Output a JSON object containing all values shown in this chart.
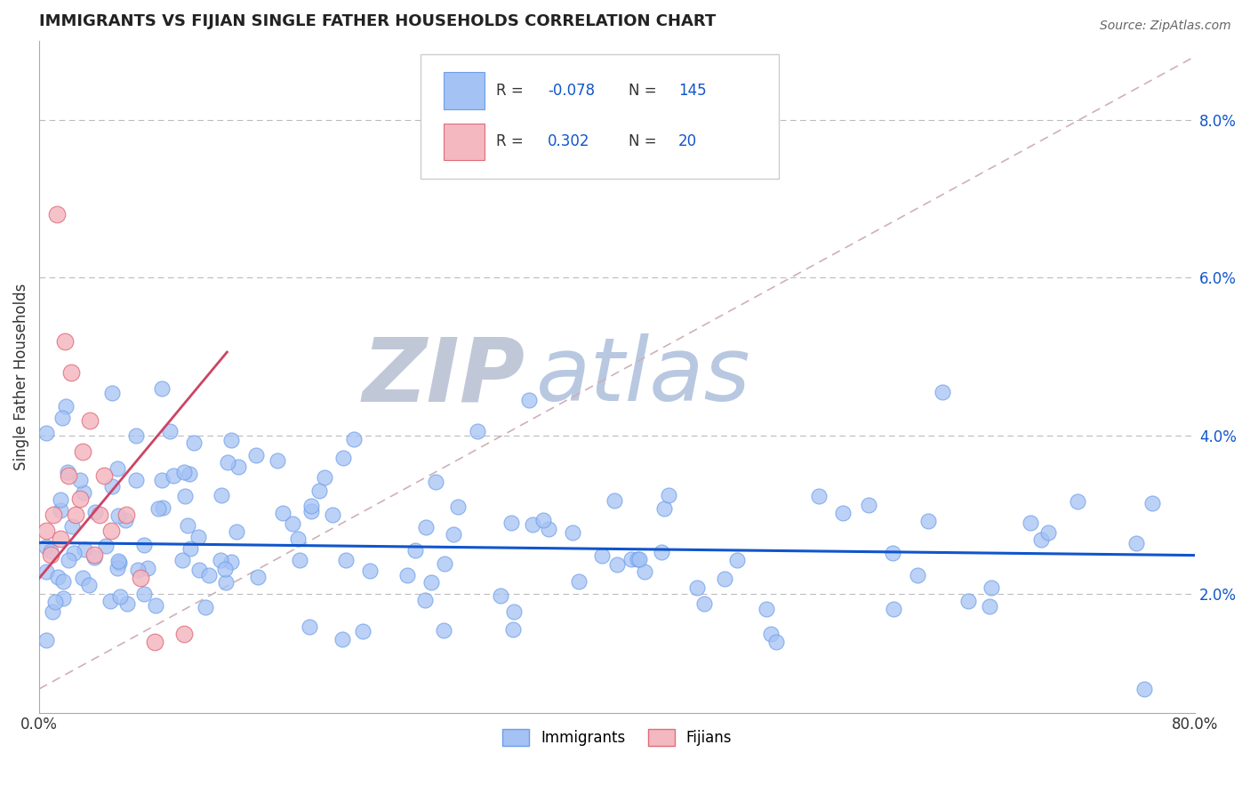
{
  "title": "IMMIGRANTS VS FIJIAN SINGLE FATHER HOUSEHOLDS CORRELATION CHART",
  "source": "Source: ZipAtlas.com",
  "ylabel": "Single Father Households",
  "xlim": [
    0.0,
    0.8
  ],
  "ylim": [
    0.005,
    0.09
  ],
  "blue_color": "#a4c2f4",
  "blue_edge_color": "#6d9eeb",
  "pink_color": "#f4b8c1",
  "pink_edge_color": "#e06c7a",
  "blue_line_color": "#1155cc",
  "pink_line_color": "#cc4466",
  "diag_color": "#e8b4b8",
  "grid_color": "#bbbbbb",
  "legend_text_color": "#1155cc",
  "legend_r_color": "#333333",
  "background_color": "#ffffff",
  "watermark_zip_color": "#c0c8d8",
  "watermark_atlas_color": "#b8c8e0"
}
